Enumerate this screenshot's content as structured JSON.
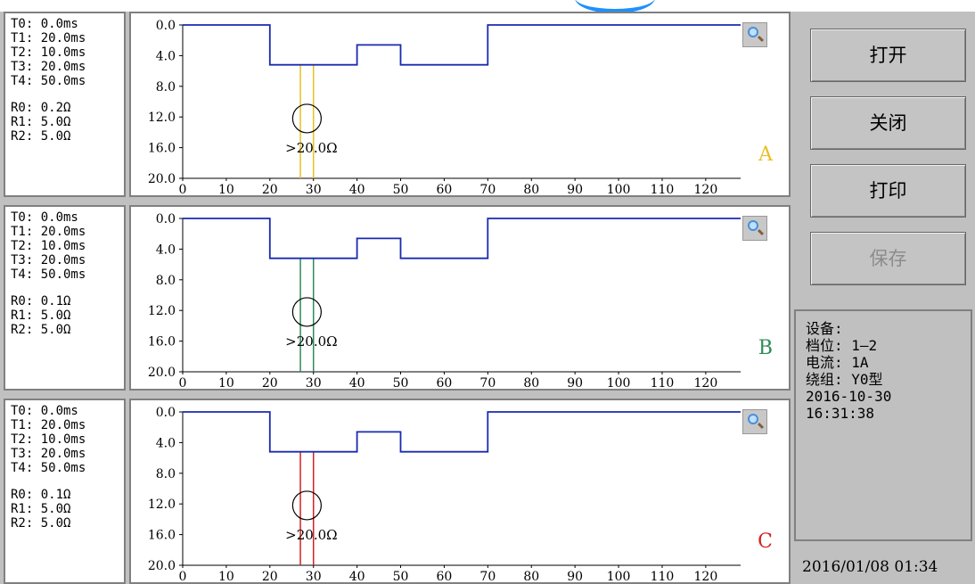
{
  "panels": [
    {
      "id": "a",
      "phase": "A",
      "color": "#e8c020",
      "info": {
        "T0": "T0: 0.0ms",
        "T1": "T1: 20.0ms",
        "T2": "T2: 10.0ms",
        "T3": "T3: 20.0ms",
        "T4": "T4: 50.0ms",
        "R0": "R0: 0.2Ω",
        "R1": "R1: 5.0Ω",
        "R2": "R2: 5.0Ω"
      },
      "annotation": ">20.0Ω"
    },
    {
      "id": "b",
      "phase": "B",
      "color": "#2e8b57",
      "info": {
        "T0": "T0: 0.0ms",
        "T1": "T1: 20.0ms",
        "T2": "T2: 10.0ms",
        "T3": "T3: 20.0ms",
        "T4": "T4: 50.0ms",
        "R0": "R0: 0.1Ω",
        "R1": "R1: 5.0Ω",
        "R2": "R2: 5.0Ω"
      },
      "annotation": ">20.0Ω"
    },
    {
      "id": "c",
      "phase": "C",
      "color": "#d42020",
      "info": {
        "T0": "T0: 0.0ms",
        "T1": "T1: 20.0ms",
        "T2": "T2: 10.0ms",
        "T3": "T3: 20.0ms",
        "T4": "T4: 50.0ms",
        "R0": "R0: 0.1Ω",
        "R1": "R1: 5.0Ω",
        "R2": "R2: 5.0Ω"
      },
      "annotation": ">20.0Ω"
    }
  ],
  "chart_data": {
    "type": "line",
    "x_ticks": [
      0,
      10,
      20,
      30,
      40,
      50,
      60,
      70,
      80,
      90,
      100,
      110,
      120
    ],
    "y_ticks": [
      "0.0",
      "4.0",
      "8.0",
      "12.0",
      "16.0",
      "20.0"
    ],
    "xlim": [
      0,
      128
    ],
    "ylim": [
      0,
      20
    ],
    "y_inverted": true,
    "trace_color": "#1a2ab0",
    "trace": [
      [
        0,
        0
      ],
      [
        20,
        0
      ],
      [
        20,
        5.2
      ],
      [
        40,
        5.2
      ],
      [
        40,
        2.6
      ],
      [
        50,
        2.6
      ],
      [
        50,
        5.2
      ],
      [
        70,
        5.2
      ],
      [
        70,
        0
      ],
      [
        128,
        0
      ]
    ],
    "spike_x": [
      27,
      30
    ]
  },
  "buttons": {
    "open": "打开",
    "close": "关闭",
    "print": "打印",
    "save": "保存"
  },
  "status": {
    "device": "设备:",
    "tap": "档位: 1—2",
    "current": "电流: 1A",
    "winding": "绕组: Y0型",
    "date": "2016-10-30",
    "time": "16:31:38"
  },
  "clock": "2016/01/08 01:34"
}
